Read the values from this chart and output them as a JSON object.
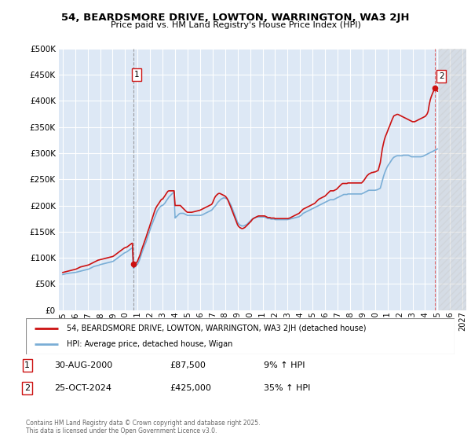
{
  "title": "54, BEARDSMORE DRIVE, LOWTON, WARRINGTON, WA3 2JH",
  "subtitle": "Price paid vs. HM Land Registry's House Price Index (HPI)",
  "ylim": [
    0,
    500000
  ],
  "yticks": [
    0,
    50000,
    100000,
    150000,
    200000,
    250000,
    300000,
    350000,
    400000,
    450000,
    500000
  ],
  "xlim_start": 1994.7,
  "xlim_end": 2027.3,
  "background_color": "#dde8f5",
  "grid_color": "#ffffff",
  "hpi_color": "#7aaed6",
  "price_color": "#cc1111",
  "purchase1_x": 2000.66,
  "purchase1_y": 87500,
  "purchase2_x": 2024.81,
  "purchase2_y": 425000,
  "legend_label1": "54, BEARDSMORE DRIVE, LOWTON, WARRINGTON, WA3 2JH (detached house)",
  "legend_label2": "HPI: Average price, detached house, Wigan",
  "note1_date": "30-AUG-2000",
  "note1_price": "£87,500",
  "note1_hpi": "9% ↑ HPI",
  "note2_date": "25-OCT-2024",
  "note2_price": "£425,000",
  "note2_hpi": "35% ↑ HPI",
  "footer": "Contains HM Land Registry data © Crown copyright and database right 2025.\nThis data is licensed under the Open Government Licence v3.0.",
  "hpi_months": [
    1995.0,
    1995.08,
    1995.17,
    1995.25,
    1995.33,
    1995.42,
    1995.5,
    1995.58,
    1995.67,
    1995.75,
    1995.83,
    1995.92,
    1996.0,
    1996.08,
    1996.17,
    1996.25,
    1996.33,
    1996.42,
    1996.5,
    1996.58,
    1996.67,
    1996.75,
    1996.83,
    1996.92,
    1997.0,
    1997.08,
    1997.17,
    1997.25,
    1997.33,
    1997.42,
    1997.5,
    1997.58,
    1997.67,
    1997.75,
    1997.83,
    1997.92,
    1998.0,
    1998.08,
    1998.17,
    1998.25,
    1998.33,
    1998.42,
    1998.5,
    1998.58,
    1998.67,
    1998.75,
    1998.83,
    1998.92,
    1999.0,
    1999.08,
    1999.17,
    1999.25,
    1999.33,
    1999.42,
    1999.5,
    1999.58,
    1999.67,
    1999.75,
    1999.83,
    1999.92,
    2000.0,
    2000.08,
    2000.17,
    2000.25,
    2000.33,
    2000.42,
    2000.5,
    2000.58,
    2000.67,
    2000.75,
    2000.83,
    2000.92,
    2001.0,
    2001.08,
    2001.17,
    2001.25,
    2001.33,
    2001.42,
    2001.5,
    2001.58,
    2001.67,
    2001.75,
    2001.83,
    2001.92,
    2002.0,
    2002.08,
    2002.17,
    2002.25,
    2002.33,
    2002.42,
    2002.5,
    2002.58,
    2002.67,
    2002.75,
    2002.83,
    2002.92,
    2003.0,
    2003.08,
    2003.17,
    2003.25,
    2003.33,
    2003.42,
    2003.5,
    2003.58,
    2003.67,
    2003.75,
    2003.83,
    2003.92,
    2004.0,
    2004.08,
    2004.17,
    2004.25,
    2004.33,
    2004.42,
    2004.5,
    2004.58,
    2004.67,
    2004.75,
    2004.83,
    2004.92,
    2005.0,
    2005.08,
    2005.17,
    2005.25,
    2005.33,
    2005.42,
    2005.5,
    2005.58,
    2005.67,
    2005.75,
    2005.83,
    2005.92,
    2006.0,
    2006.08,
    2006.17,
    2006.25,
    2006.33,
    2006.42,
    2006.5,
    2006.58,
    2006.67,
    2006.75,
    2006.83,
    2006.92,
    2007.0,
    2007.08,
    2007.17,
    2007.25,
    2007.33,
    2007.42,
    2007.5,
    2007.58,
    2007.67,
    2007.75,
    2007.83,
    2007.92,
    2008.0,
    2008.08,
    2008.17,
    2008.25,
    2008.33,
    2008.42,
    2008.5,
    2008.58,
    2008.67,
    2008.75,
    2008.83,
    2008.92,
    2009.0,
    2009.08,
    2009.17,
    2009.25,
    2009.33,
    2009.42,
    2009.5,
    2009.58,
    2009.67,
    2009.75,
    2009.83,
    2009.92,
    2010.0,
    2010.08,
    2010.17,
    2010.25,
    2010.33,
    2010.42,
    2010.5,
    2010.58,
    2010.67,
    2010.75,
    2010.83,
    2010.92,
    2011.0,
    2011.08,
    2011.17,
    2011.25,
    2011.33,
    2011.42,
    2011.5,
    2011.58,
    2011.67,
    2011.75,
    2011.83,
    2011.92,
    2012.0,
    2012.08,
    2012.17,
    2012.25,
    2012.33,
    2012.42,
    2012.5,
    2012.58,
    2012.67,
    2012.75,
    2012.83,
    2012.92,
    2013.0,
    2013.08,
    2013.17,
    2013.25,
    2013.33,
    2013.42,
    2013.5,
    2013.58,
    2013.67,
    2013.75,
    2013.83,
    2013.92,
    2014.0,
    2014.08,
    2014.17,
    2014.25,
    2014.33,
    2014.42,
    2014.5,
    2014.58,
    2014.67,
    2014.75,
    2014.83,
    2014.92,
    2015.0,
    2015.08,
    2015.17,
    2015.25,
    2015.33,
    2015.42,
    2015.5,
    2015.58,
    2015.67,
    2015.75,
    2015.83,
    2015.92,
    2016.0,
    2016.08,
    2016.17,
    2016.25,
    2016.33,
    2016.42,
    2016.5,
    2016.58,
    2016.67,
    2016.75,
    2016.83,
    2016.92,
    2017.0,
    2017.08,
    2017.17,
    2017.25,
    2017.33,
    2017.42,
    2017.5,
    2017.58,
    2017.67,
    2017.75,
    2017.83,
    2017.92,
    2018.0,
    2018.08,
    2018.17,
    2018.25,
    2018.33,
    2018.42,
    2018.5,
    2018.58,
    2018.67,
    2018.75,
    2018.83,
    2018.92,
    2019.0,
    2019.08,
    2019.17,
    2019.25,
    2019.33,
    2019.42,
    2019.5,
    2019.58,
    2019.67,
    2019.75,
    2019.83,
    2019.92,
    2020.0,
    2020.08,
    2020.17,
    2020.25,
    2020.33,
    2020.42,
    2020.5,
    2020.58,
    2020.67,
    2020.75,
    2020.83,
    2020.92,
    2021.0,
    2021.08,
    2021.17,
    2021.25,
    2021.33,
    2021.42,
    2021.5,
    2021.58,
    2021.67,
    2021.75,
    2021.83,
    2021.92,
    2022.0,
    2022.08,
    2022.17,
    2022.25,
    2022.33,
    2022.42,
    2022.5,
    2022.58,
    2022.67,
    2022.75,
    2022.83,
    2022.92,
    2023.0,
    2023.08,
    2023.17,
    2023.25,
    2023.33,
    2023.42,
    2023.5,
    2023.58,
    2023.67,
    2023.75,
    2023.83,
    2023.92,
    2024.0,
    2024.08,
    2024.17,
    2024.25,
    2024.33,
    2024.42,
    2024.5,
    2024.58,
    2024.67,
    2024.75,
    2024.83,
    2024.92,
    2025.0
  ],
  "hpi_vals": [
    68000,
    68500,
    69000,
    69500,
    70000,
    70000,
    70500,
    71000,
    71000,
    71500,
    71500,
    72000,
    72000,
    72500,
    73000,
    73500,
    74000,
    74500,
    75000,
    75500,
    76000,
    76500,
    77000,
    77500,
    78000,
    78500,
    79500,
    80500,
    81500,
    82500,
    83500,
    84000,
    84500,
    85000,
    85500,
    86000,
    87000,
    87500,
    88000,
    88500,
    89000,
    89500,
    90000,
    90500,
    91000,
    91500,
    92000,
    92500,
    93000,
    94000,
    95500,
    97000,
    98500,
    100000,
    101500,
    103000,
    104500,
    106000,
    107500,
    109000,
    110000,
    111000,
    112000,
    113500,
    115000,
    116500,
    118000,
    119000,
    80000,
    82000,
    84000,
    86000,
    88000,
    92000,
    97000,
    103000,
    109000,
    115000,
    120000,
    125000,
    130000,
    136000,
    142000,
    148000,
    154000,
    160000,
    165000,
    170000,
    175000,
    180000,
    185000,
    190000,
    193000,
    196000,
    198000,
    200000,
    200000,
    202000,
    204000,
    207000,
    210000,
    213000,
    216000,
    218000,
    220000,
    222000,
    224000,
    226000,
    176000,
    178000,
    180000,
    182000,
    184000,
    185000,
    185000,
    185000,
    185000,
    184000,
    183000,
    182000,
    181000,
    181000,
    181000,
    181000,
    181000,
    181000,
    181000,
    181000,
    181000,
    181000,
    181000,
    181000,
    181000,
    181500,
    182000,
    183000,
    184000,
    185000,
    186000,
    187000,
    188000,
    189000,
    190000,
    191000,
    193000,
    196000,
    198000,
    200000,
    203000,
    206000,
    208000,
    210000,
    212000,
    213000,
    214000,
    215000,
    214000,
    213000,
    212000,
    210000,
    207000,
    203000,
    199000,
    194000,
    188000,
    183000,
    178000,
    173000,
    168000,
    165000,
    163000,
    162000,
    161000,
    161000,
    161000,
    162000,
    163000,
    164000,
    166000,
    168000,
    170000,
    172000,
    174000,
    175000,
    176000,
    177000,
    178000,
    178000,
    178000,
    178000,
    178000,
    178000,
    178000,
    178000,
    178000,
    177000,
    176000,
    175000,
    175000,
    175000,
    174000,
    174000,
    174000,
    174000,
    173000,
    173000,
    173000,
    173000,
    173000,
    173000,
    173000,
    173000,
    173000,
    173000,
    173000,
    173000,
    173000,
    173500,
    174000,
    174500,
    175000,
    175500,
    176000,
    176500,
    177000,
    177500,
    178000,
    178500,
    180000,
    181000,
    183000,
    185000,
    186000,
    187000,
    188000,
    189000,
    190000,
    191000,
    192000,
    193000,
    194000,
    195000,
    196000,
    197000,
    198000,
    199000,
    200000,
    201000,
    202000,
    203000,
    204000,
    205000,
    206000,
    207000,
    208000,
    209000,
    210000,
    211000,
    211000,
    211000,
    211000,
    212000,
    213000,
    214000,
    215000,
    216000,
    217000,
    218000,
    219000,
    220000,
    221000,
    221000,
    221000,
    221000,
    222000,
    222000,
    222000,
    222000,
    222000,
    222000,
    222000,
    222000,
    222000,
    222000,
    222000,
    222000,
    222000,
    222000,
    223000,
    224000,
    225000,
    226000,
    227000,
    228000,
    229000,
    229000,
    229000,
    229000,
    229000,
    229000,
    229000,
    229500,
    230000,
    231000,
    232000,
    233000,
    240000,
    247000,
    255000,
    261000,
    266000,
    271000,
    275000,
    278000,
    281000,
    284000,
    287000,
    290000,
    292000,
    293000,
    294000,
    295000,
    295000,
    295000,
    295000,
    295000,
    295000,
    296000,
    296000,
    296000,
    296000,
    296000,
    296000,
    295000,
    294000,
    293000,
    293000,
    293000,
    293000,
    293000,
    293000,
    293000,
    293000,
    293000,
    293000,
    293500,
    294000,
    295000,
    296000,
    297000,
    298000,
    299000,
    300000,
    301000,
    302000,
    303000,
    304000,
    305000,
    306000,
    307000,
    308000
  ],
  "price_vals": [
    72000,
    72500,
    73000,
    73500,
    74000,
    74500,
    75000,
    75500,
    76000,
    76500,
    77000,
    77500,
    78000,
    78500,
    79500,
    80500,
    81500,
    82500,
    83000,
    83500,
    84000,
    84500,
    85000,
    85500,
    86000,
    86500,
    87500,
    88500,
    89500,
    90500,
    91500,
    92500,
    93500,
    94500,
    95500,
    96000,
    96500,
    97000,
    97500,
    98000,
    98500,
    99000,
    99500,
    100000,
    100500,
    101000,
    101500,
    102000,
    102500,
    103500,
    105000,
    106500,
    108000,
    109500,
    111000,
    112500,
    114000,
    115500,
    117000,
    118500,
    119500,
    120000,
    121000,
    122500,
    124000,
    125500,
    127000,
    128000,
    82000,
    85000,
    88000,
    91000,
    94000,
    99000,
    104000,
    110000,
    116000,
    122000,
    127000,
    133000,
    139000,
    145000,
    151000,
    157000,
    163000,
    169000,
    175000,
    181000,
    187000,
    193000,
    197000,
    200000,
    203000,
    206000,
    209000,
    212000,
    212000,
    215000,
    218000,
    221000,
    224000,
    227000,
    228000,
    228000,
    228000,
    228000,
    228000,
    228000,
    200000,
    200000,
    200000,
    200000,
    200000,
    200000,
    198000,
    196000,
    194000,
    192000,
    190000,
    188000,
    187000,
    187000,
    187000,
    187000,
    187000,
    187500,
    188000,
    188500,
    189000,
    189500,
    190000,
    190500,
    191000,
    192000,
    193000,
    194000,
    195000,
    196000,
    197000,
    198000,
    199000,
    200000,
    201000,
    202000,
    205000,
    210000,
    215000,
    218000,
    220000,
    222000,
    223000,
    223000,
    222000,
    221000,
    220000,
    219000,
    218000,
    216000,
    213000,
    209000,
    204000,
    199000,
    194000,
    189000,
    183000,
    178000,
    173000,
    168000,
    163000,
    160000,
    158000,
    157000,
    156000,
    156000,
    157000,
    158000,
    160000,
    162000,
    164000,
    166000,
    168000,
    170000,
    173000,
    175000,
    176000,
    177000,
    178000,
    179000,
    180000,
    180000,
    180000,
    180000,
    180000,
    180000,
    180000,
    179000,
    178000,
    177000,
    177000,
    177000,
    176000,
    176000,
    176000,
    176000,
    175000,
    175000,
    175000,
    175000,
    175000,
    175000,
    175000,
    175000,
    175000,
    175000,
    175000,
    175000,
    175000,
    175500,
    176000,
    177000,
    178000,
    179000,
    180000,
    181000,
    182000,
    183000,
    184000,
    185000,
    187000,
    189000,
    191000,
    193000,
    194000,
    195000,
    196000,
    197000,
    198000,
    199000,
    200000,
    201000,
    202000,
    203000,
    204000,
    206000,
    208000,
    210000,
    212000,
    213000,
    214000,
    215000,
    216000,
    217000,
    218000,
    220000,
    222000,
    224000,
    226000,
    228000,
    228000,
    228000,
    228000,
    229000,
    230000,
    231000,
    233000,
    235000,
    237000,
    239000,
    241000,
    242000,
    242000,
    242000,
    242000,
    242000,
    243000,
    243000,
    243000,
    243000,
    243000,
    243000,
    243000,
    243000,
    243000,
    243000,
    243000,
    243000,
    243000,
    243000,
    245000,
    247000,
    250000,
    253000,
    256000,
    258000,
    260000,
    261000,
    262000,
    263000,
    263000,
    264000,
    264000,
    265000,
    266000,
    267000,
    274000,
    282000,
    295000,
    308000,
    318000,
    326000,
    332000,
    337000,
    342000,
    347000,
    352000,
    357000,
    362000,
    367000,
    371000,
    372000,
    373000,
    374000,
    374000,
    373000,
    372000,
    371000,
    370000,
    369000,
    368000,
    367000,
    366000,
    365000,
    364000,
    363000,
    362000,
    361000,
    360000,
    360000,
    360000,
    361000,
    362000,
    363000,
    364000,
    365000,
    366000,
    367000,
    368000,
    369000,
    370000,
    372000,
    375000,
    380000,
    392000,
    402000,
    408000,
    413000,
    418000,
    423000,
    425000,
    420000,
    418000
  ]
}
